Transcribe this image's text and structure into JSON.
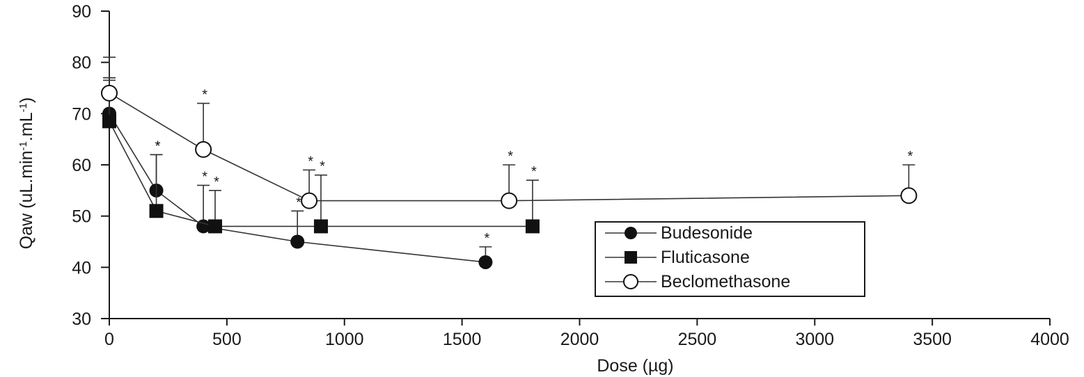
{
  "chart_data": {
    "type": "line",
    "title": "",
    "xlabel": "Dose (µg)",
    "ylabel_parts": {
      "base": "Qaw (uL.min",
      "exp1": "-1",
      "mid": ".mL",
      "exp2": "-1",
      "end": ")"
    },
    "xlim": [
      0,
      4000
    ],
    "ylim": [
      30,
      90
    ],
    "xticks": [
      "0",
      "500",
      "1000",
      "1500",
      "2000",
      "2500",
      "3000",
      "3500",
      "4000"
    ],
    "yticks": [
      "30",
      "40",
      "50",
      "60",
      "70",
      "80",
      "90"
    ],
    "grid": false,
    "legend_position": "lower-right",
    "series": [
      {
        "name": "Budesonide",
        "marker": "filled-circle",
        "color": "#111111",
        "points": [
          {
            "x": 0,
            "y": 70,
            "err": 7
          },
          {
            "x": 200,
            "y": 55,
            "err": 7,
            "sig": "*"
          },
          {
            "x": 400,
            "y": 48,
            "err": 8,
            "sig": "*"
          },
          {
            "x": 800,
            "y": 45,
            "err": 6,
            "sig": "*"
          },
          {
            "x": 1600,
            "y": 41,
            "err": 3,
            "sig": "*"
          }
        ]
      },
      {
        "name": "Fluticasone",
        "marker": "filled-square",
        "color": "#111111",
        "points": [
          {
            "x": 0,
            "y": 68.5,
            "err": 8
          },
          {
            "x": 200,
            "y": 51,
            "err": 11,
            "sig": "*"
          },
          {
            "x": 450,
            "y": 48,
            "err": 7,
            "sig": "*"
          },
          {
            "x": 900,
            "y": 48,
            "err": 10,
            "sig": "*"
          },
          {
            "x": 1800,
            "y": 48,
            "err": 9,
            "sig": "*"
          }
        ]
      },
      {
        "name": "Beclomethasone",
        "marker": "open-circle",
        "color": "#111111",
        "points": [
          {
            "x": 0,
            "y": 74,
            "err": 7
          },
          {
            "x": 400,
            "y": 63,
            "err": 9,
            "sig": "*"
          },
          {
            "x": 850,
            "y": 53,
            "err": 6,
            "sig": "*"
          },
          {
            "x": 1700,
            "y": 53,
            "err": 7,
            "sig": "*"
          },
          {
            "x": 3400,
            "y": 54,
            "err": 6,
            "sig": "*"
          }
        ]
      }
    ]
  }
}
